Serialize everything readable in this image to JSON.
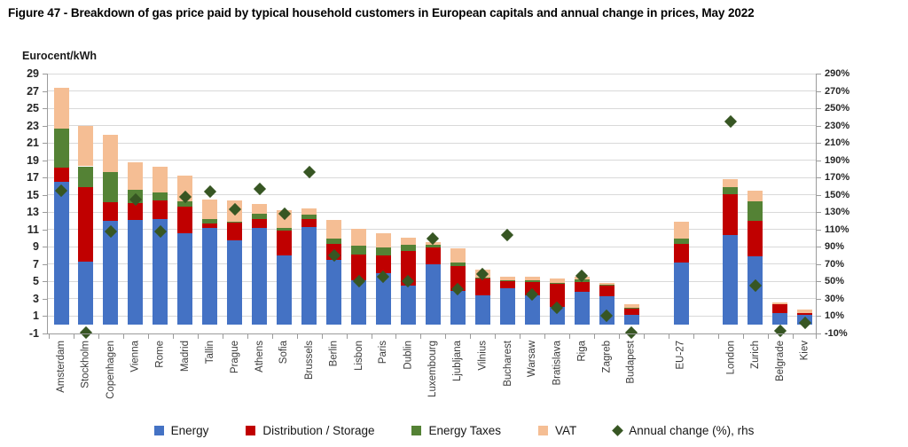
{
  "title": "Figure 47 - Breakdown of gas price paid by typical household customers in European capitals and annual change in prices, May 2022",
  "chart_data": {
    "type": "bar",
    "stacked": true,
    "grid": true,
    "legend_position": "bottom",
    "y_left": {
      "label": "Eurocent/kWh",
      "min": -1,
      "max": 29,
      "step": 2
    },
    "y_right": {
      "label": "Annual change (%)",
      "min": -10,
      "max": 290,
      "step": 20,
      "unit": "%"
    },
    "categories": [
      "Amsterdam",
      "Stockholm",
      "Copenhagen",
      "Vienna",
      "Rome",
      "Madrid",
      "Tallin",
      "Prague",
      "Athens",
      "Sofia",
      "Brussels",
      "Berlin",
      "Lisbon",
      "Paris",
      "Dublin",
      "Luxembourg",
      "Ljubljana",
      "Vilnius",
      "Bucharest",
      "Warsaw",
      "Bratislava",
      "Riga",
      "Zagreb",
      "Budapest",
      "EU-27",
      "London",
      "Zurich",
      "Belgrade",
      "Kiev"
    ],
    "group_breaks_after": [
      "Budapest",
      "EU-27"
    ],
    "series": [
      {
        "key": "energy",
        "name": "Energy",
        "color": "#4472C4",
        "values": [
          16.5,
          7.3,
          12.0,
          12.1,
          12.2,
          10.6,
          11.2,
          9.7,
          11.2,
          8.0,
          11.3,
          7.5,
          5.1,
          6.0,
          4.5,
          7.0,
          3.9,
          3.4,
          4.2,
          3.4,
          2.1,
          3.8,
          3.3,
          1.2,
          7.2,
          10.4,
          7.9,
          1.4,
          1.1
        ]
      },
      {
        "key": "distribution-storage",
        "name": "Distribution / Storage",
        "color": "#C00000",
        "values": [
          1.6,
          8.6,
          2.2,
          2.0,
          2.2,
          3.0,
          0.5,
          2.1,
          1.0,
          2.9,
          0.9,
          1.8,
          3.0,
          2.0,
          4.0,
          1.9,
          2.9,
          1.9,
          0.8,
          1.5,
          2.6,
          1.1,
          1.2,
          0.7,
          2.1,
          4.7,
          4.1,
          1.0,
          0.3
        ]
      },
      {
        "key": "energy-taxes",
        "name": "Energy Taxes",
        "color": "#548235",
        "values": [
          4.6,
          2.4,
          3.4,
          1.5,
          0.9,
          0.7,
          0.5,
          0.1,
          0.6,
          0.3,
          0.5,
          0.7,
          1.0,
          0.9,
          0.7,
          0.3,
          0.4,
          0.1,
          0.1,
          0.2,
          0.1,
          0.3,
          0.1,
          0.1,
          0.7,
          0.8,
          2.3,
          0.0,
          0.0
        ]
      },
      {
        "key": "vat",
        "name": "VAT",
        "color": "#F5BE94",
        "values": [
          4.7,
          4.7,
          4.3,
          3.2,
          3.0,
          2.9,
          2.3,
          2.5,
          1.1,
          2.0,
          0.7,
          2.1,
          2.0,
          1.7,
          0.9,
          0.3,
          1.6,
          1.0,
          0.5,
          0.5,
          0.5,
          0.4,
          0.2,
          0.4,
          1.9,
          0.9,
          1.2,
          0.2,
          0.4
        ]
      }
    ],
    "markers": {
      "key": "annual-change",
      "name": "Annual change (%), rhs",
      "color": "#375623",
      "axis": "right",
      "values": [
        155,
        -9,
        108,
        145,
        108,
        148,
        154,
        133,
        157,
        128,
        176,
        80,
        50,
        56,
        50,
        100,
        41,
        59,
        104,
        35,
        20,
        57,
        10,
        -9,
        null,
        235,
        45,
        -7,
        2
      ]
    }
  }
}
